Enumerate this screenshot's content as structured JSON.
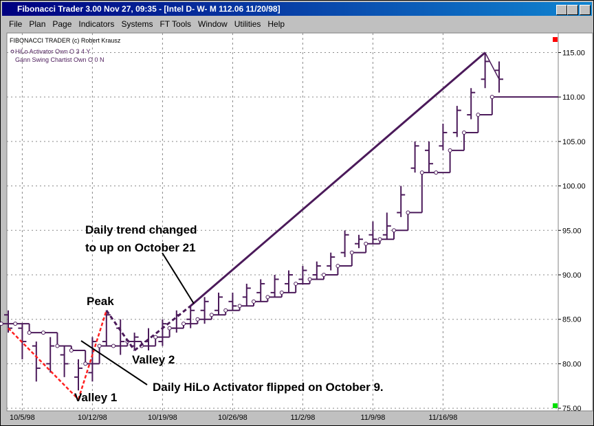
{
  "window": {
    "title": "Fibonacci Trader 3.00 Nov 27,  09:35 - [Intel D- W- M  112.06 11/20/98]",
    "menu": [
      "File",
      "Plan",
      "Page",
      "Indicators",
      "Systems",
      "FT Tools",
      "Window",
      "Utilities",
      "Help"
    ]
  },
  "chart_data": {
    "type": "ohlc",
    "legend": [
      "FIBONACCI TRADER (c) Robert Krausz",
      "HiLo Activator Own O 3 4 Y",
      "Gann Swing Chartist Own O 0 N"
    ],
    "categories": [
      null,
      "10/5/98",
      null,
      null,
      null,
      null,
      "10/12/98",
      null,
      null,
      null,
      null,
      "10/19/98",
      null,
      null,
      null,
      null,
      "10/26/98",
      null,
      null,
      null,
      null,
      "11/2/98",
      null,
      null,
      null,
      null,
      "11/9/98",
      null,
      null,
      null,
      null,
      "11/16/98",
      null,
      null,
      null,
      null
    ],
    "color": "#4b1a5a",
    "high": [
      86,
      84.5,
      82.5,
      83,
      82,
      80.5,
      83,
      86,
      85,
      83.5,
      84,
      85,
      86,
      86.5,
      87.5,
      88,
      88,
      89,
      89.5,
      90,
      90.5,
      91,
      91.5,
      92.5,
      95,
      94.5,
      96,
      97,
      100,
      105,
      105,
      107,
      109,
      111,
      115,
      114
    ],
    "low": [
      83.5,
      80.5,
      78,
      79,
      78.5,
      77,
      78,
      82,
      81,
      81.5,
      81.5,
      82,
      83.5,
      84,
      84.5,
      85.5,
      86,
      86.5,
      87,
      87.5,
      88,
      89,
      89.5,
      90.5,
      92,
      93,
      93.5,
      94,
      96.5,
      101.5,
      101.5,
      104,
      105.5,
      107.5,
      111,
      110.5
    ],
    "open": [
      85.5,
      84,
      82,
      80,
      81,
      78.5,
      79,
      82.5,
      84,
      82,
      82.5,
      82.5,
      84,
      85,
      86,
      86,
      87,
      87.5,
      88,
      88,
      89,
      89.5,
      90,
      91,
      92.5,
      93.5,
      94.5,
      94.5,
      97,
      102,
      104,
      104.5,
      106,
      108,
      112,
      113
    ],
    "close": [
      84,
      82.5,
      79.5,
      82,
      80,
      79.5,
      82.5,
      85.5,
      82.5,
      83,
      82,
      84.5,
      85.5,
      86,
      87,
      87.5,
      86.5,
      88.5,
      89,
      89.5,
      90,
      90.5,
      91,
      92,
      94.5,
      94,
      94,
      95.5,
      99,
      104.5,
      102.5,
      106,
      108.5,
      110.5,
      114,
      112
    ],
    "hilo": {
      "name": "HiLo Activator",
      "color": "#4b1a5a",
      "values": [
        84.5,
        84.5,
        83.5,
        83.5,
        82,
        81.5,
        80,
        82,
        82,
        82.5,
        82,
        83,
        84,
        84.5,
        85,
        85.5,
        86,
        86.5,
        87,
        87.5,
        88,
        89,
        89.5,
        90,
        91,
        92.5,
        93.5,
        94,
        95,
        97,
        101.5,
        101.5,
        104,
        106,
        108,
        110
      ]
    },
    "swing": {
      "name": "Gann Swing",
      "color": "#4b1a5a",
      "x": [
        7,
        9,
        13,
        34,
        35
      ],
      "values": [
        86,
        81.5,
        86.5,
        115,
        112
      ]
    },
    "daily_swing": {
      "color": "#ff2020",
      "x": [
        0,
        5,
        7
      ],
      "values": [
        84,
        76,
        86
      ]
    },
    "annotations": [
      "Daily trend changed",
      "to up on October 21",
      "Peak",
      "Valley 2",
      "Daily HiLo Activator flipped on October 9.",
      "Valley 1"
    ],
    "ylim": [
      74.7,
      117.2
    ],
    "yticks": [
      {
        "value": 75,
        "label": "75.00"
      },
      {
        "value": 80,
        "label": "80.00"
      },
      {
        "value": 85,
        "label": "85.00"
      },
      {
        "value": 90,
        "label": "90.00"
      },
      {
        "value": 95,
        "label": "95.00"
      },
      {
        "value": 100,
        "label": "100.00"
      },
      {
        "value": 105,
        "label": "105.00"
      },
      {
        "value": 110,
        "label": "110.00"
      },
      {
        "value": 115,
        "label": "115.00"
      }
    ],
    "grid": true
  }
}
